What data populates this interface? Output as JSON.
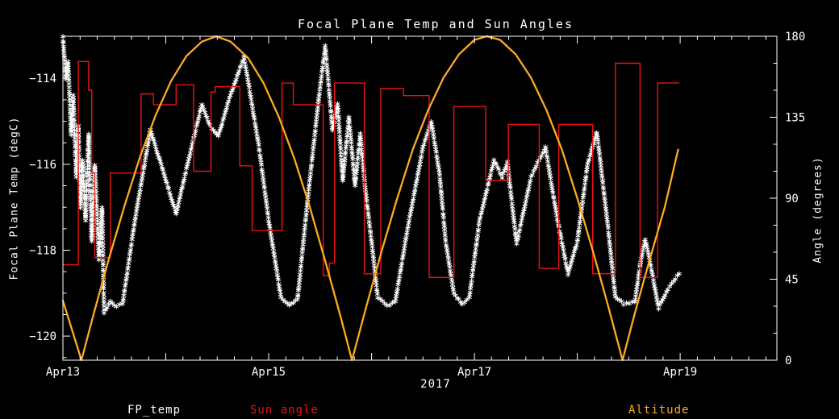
{
  "title": "Focal Plane Temp and Sun Angles",
  "axes": {
    "x": {
      "year_label": "2017",
      "range_days": [
        0,
        6.94
      ],
      "major_every_days": 1,
      "minor_every_days": 0.166667,
      "tick_labels": [
        {
          "t": 0,
          "label": "Apr13"
        },
        {
          "t": 2,
          "label": "Apr15"
        },
        {
          "t": 4,
          "label": "Apr17"
        },
        {
          "t": 6,
          "label": "Apr19"
        }
      ]
    },
    "y_left": {
      "label": "Focal Plane Temp (degC)",
      "range": [
        -120.56,
        -113.02
      ],
      "minor_step": 0.5,
      "ticks": [
        {
          "v": -114,
          "label": "−114"
        },
        {
          "v": -116,
          "label": "−116"
        },
        {
          "v": -118,
          "label": "−118"
        },
        {
          "v": -120,
          "label": "−120"
        }
      ]
    },
    "y_right": {
      "label": "Angle (degrees)",
      "range": [
        0,
        180
      ],
      "minor_step": 15,
      "ticks": [
        {
          "v": 0,
          "label": "0"
        },
        {
          "v": 45,
          "label": "45"
        },
        {
          "v": 90,
          "label": "90"
        },
        {
          "v": 135,
          "label": "135"
        },
        {
          "v": 180,
          "label": "180"
        }
      ]
    }
  },
  "colors": {
    "background": "#000000",
    "axis": "#ffffff",
    "fp_temp": "#ffffff",
    "sun_angle": "#ee1111",
    "altitude": "#ffab1e"
  },
  "legend": [
    {
      "label": "FP_temp",
      "color": "#ffffff",
      "x": 158
    },
    {
      "label": "Sun angle",
      "color": "#ee1111",
      "x": 310
    },
    {
      "label": "Altitude",
      "color": "#ffab1e",
      "x": 779
    }
  ],
  "chart_data": {
    "type": "line",
    "title": "Focal Plane Temp and Sun Angles",
    "x_unit": "days since 2017 Apr 13 00:00",
    "xlabel": "2017",
    "ylabel_left": "Focal Plane Temp (degC)",
    "ylabel_right": "Angle (degrees)",
    "xlim_days": [
      0,
      6.94
    ],
    "ylim_left": [
      -120.56,
      -113.02
    ],
    "ylim_right": [
      0,
      180
    ],
    "grid": false,
    "legend_position": "below",
    "series": [
      {
        "name": "FP_temp",
        "axis": "left",
        "style": "asterisk-markers",
        "color": "#ffffff",
        "points": [
          [
            0.0,
            -113.05
          ],
          [
            0.03,
            -114.0
          ],
          [
            0.05,
            -113.6
          ],
          [
            0.08,
            -115.3
          ],
          [
            0.1,
            -114.4
          ],
          [
            0.13,
            -116.3
          ],
          [
            0.15,
            -115.1
          ],
          [
            0.17,
            -117.0
          ],
          [
            0.19,
            -115.9
          ],
          [
            0.22,
            -117.3
          ],
          [
            0.25,
            -115.3
          ],
          [
            0.28,
            -117.8
          ],
          [
            0.31,
            -116.0
          ],
          [
            0.35,
            -118.2
          ],
          [
            0.38,
            -117.0
          ],
          [
            0.4,
            -119.45
          ],
          [
            0.46,
            -119.2
          ],
          [
            0.52,
            -119.3
          ],
          [
            0.58,
            -119.25
          ],
          [
            0.7,
            -117.3
          ],
          [
            0.85,
            -115.2
          ],
          [
            0.98,
            -116.2
          ],
          [
            1.1,
            -117.15
          ],
          [
            1.25,
            -115.6
          ],
          [
            1.35,
            -114.6
          ],
          [
            1.43,
            -115.1
          ],
          [
            1.51,
            -115.35
          ],
          [
            1.6,
            -114.6
          ],
          [
            1.76,
            -113.5
          ],
          [
            1.9,
            -115.5
          ],
          [
            2.0,
            -117.3
          ],
          [
            2.12,
            -119.1
          ],
          [
            2.2,
            -119.3
          ],
          [
            2.28,
            -119.15
          ],
          [
            2.38,
            -116.8
          ],
          [
            2.49,
            -114.4
          ],
          [
            2.55,
            -113.25
          ],
          [
            2.62,
            -115.2
          ],
          [
            2.67,
            -114.6
          ],
          [
            2.72,
            -116.4
          ],
          [
            2.78,
            -114.9
          ],
          [
            2.84,
            -116.5
          ],
          [
            2.89,
            -115.3
          ],
          [
            2.94,
            -116.6
          ],
          [
            3.0,
            -117.8
          ],
          [
            3.06,
            -119.1
          ],
          [
            3.15,
            -119.3
          ],
          [
            3.23,
            -119.2
          ],
          [
            3.35,
            -117.5
          ],
          [
            3.5,
            -115.6
          ],
          [
            3.58,
            -115.0
          ],
          [
            3.66,
            -116.2
          ],
          [
            3.72,
            -117.8
          ],
          [
            3.8,
            -119.0
          ],
          [
            3.88,
            -119.25
          ],
          [
            3.95,
            -119.1
          ],
          [
            4.05,
            -117.3
          ],
          [
            4.19,
            -115.9
          ],
          [
            4.27,
            -116.3
          ],
          [
            4.32,
            -115.95
          ],
          [
            4.41,
            -117.85
          ],
          [
            4.55,
            -116.3
          ],
          [
            4.69,
            -115.6
          ],
          [
            4.8,
            -117.2
          ],
          [
            4.91,
            -118.55
          ],
          [
            5.0,
            -117.8
          ],
          [
            5.1,
            -116.0
          ],
          [
            5.19,
            -115.25
          ],
          [
            5.3,
            -117.5
          ],
          [
            5.37,
            -119.1
          ],
          [
            5.45,
            -119.25
          ],
          [
            5.56,
            -119.2
          ],
          [
            5.62,
            -118.2
          ],
          [
            5.66,
            -117.75
          ],
          [
            5.71,
            -118.3
          ],
          [
            5.79,
            -119.35
          ],
          [
            5.88,
            -118.9
          ],
          [
            5.99,
            -118.55
          ]
        ]
      },
      {
        "name": "Sun angle",
        "axis": "right",
        "style": "steps",
        "color": "#ee1111",
        "steps": [
          [
            0.0,
            0.15,
            53
          ],
          [
            0.15,
            0.25,
            166
          ],
          [
            0.25,
            0.28,
            150
          ],
          [
            0.28,
            0.31,
            104
          ],
          [
            0.31,
            0.46,
            57
          ],
          [
            0.46,
            0.76,
            104
          ],
          [
            0.76,
            0.88,
            148
          ],
          [
            0.88,
            1.1,
            142
          ],
          [
            1.1,
            1.27,
            153
          ],
          [
            1.27,
            1.44,
            105
          ],
          [
            1.44,
            1.48,
            149
          ],
          [
            1.48,
            1.72,
            152
          ],
          [
            1.72,
            1.84,
            108
          ],
          [
            1.84,
            2.13,
            72
          ],
          [
            2.13,
            2.24,
            154
          ],
          [
            2.24,
            2.53,
            142
          ],
          [
            2.53,
            2.59,
            47
          ],
          [
            2.59,
            2.64,
            54
          ],
          [
            2.64,
            2.93,
            154
          ],
          [
            2.93,
            3.09,
            48
          ],
          [
            3.09,
            3.31,
            151
          ],
          [
            3.31,
            3.56,
            147
          ],
          [
            3.56,
            3.8,
            46
          ],
          [
            3.8,
            4.11,
            141
          ],
          [
            4.11,
            4.33,
            100
          ],
          [
            4.33,
            4.63,
            131
          ],
          [
            4.63,
            4.82,
            51
          ],
          [
            4.82,
            5.15,
            131
          ],
          [
            5.15,
            5.37,
            48
          ],
          [
            5.37,
            5.61,
            165
          ],
          [
            5.61,
            5.78,
            46
          ],
          [
            5.78,
            5.99,
            154
          ]
        ]
      },
      {
        "name": "Altitude",
        "axis": "right",
        "style": "line",
        "color": "#ffab1e",
        "points": [
          [
            0.0,
            33
          ],
          [
            0.06,
            22
          ],
          [
            0.12,
            11
          ],
          [
            0.18,
            0
          ],
          [
            0.3,
            26
          ],
          [
            0.45,
            57
          ],
          [
            0.6,
            86
          ],
          [
            0.75,
            113
          ],
          [
            0.9,
            136
          ],
          [
            1.05,
            155
          ],
          [
            1.2,
            169
          ],
          [
            1.35,
            177
          ],
          [
            1.49,
            180
          ],
          [
            1.63,
            177
          ],
          [
            1.8,
            168
          ],
          [
            1.95,
            154
          ],
          [
            2.1,
            135
          ],
          [
            2.25,
            112
          ],
          [
            2.4,
            85
          ],
          [
            2.55,
            55
          ],
          [
            2.7,
            24
          ],
          [
            2.81,
            0
          ],
          [
            2.95,
            30
          ],
          [
            3.1,
            61
          ],
          [
            3.25,
            90
          ],
          [
            3.4,
            117
          ],
          [
            3.55,
            139
          ],
          [
            3.7,
            157
          ],
          [
            3.85,
            170
          ],
          [
            4.0,
            178
          ],
          [
            4.12,
            180
          ],
          [
            4.25,
            178
          ],
          [
            4.4,
            170
          ],
          [
            4.55,
            157
          ],
          [
            4.7,
            139
          ],
          [
            4.85,
            117
          ],
          [
            5.0,
            90
          ],
          [
            5.15,
            61
          ],
          [
            5.3,
            30
          ],
          [
            5.44,
            0
          ],
          [
            5.55,
            24
          ],
          [
            5.65,
            45
          ],
          [
            5.75,
            65
          ],
          [
            5.85,
            85
          ],
          [
            5.98,
            117
          ]
        ]
      }
    ]
  }
}
